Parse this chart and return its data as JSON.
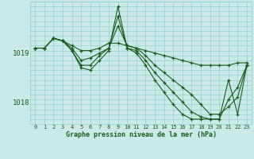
{
  "background_color": "#cce9e9",
  "grid_color": "#99cccc",
  "line_color": "#1a5c1a",
  "title": "Graphe pression niveau de la mer (hPa)",
  "xlim": [
    -0.5,
    23.5
  ],
  "ylim": [
    1017.55,
    1020.05
  ],
  "yticks": [
    1018,
    1019
  ],
  "xtick_labels": [
    "0",
    "1",
    "2",
    "3",
    "4",
    "5",
    "6",
    "7",
    "8",
    "9",
    "10",
    "11",
    "12",
    "13",
    "14",
    "15",
    "16",
    "17",
    "18",
    "19",
    "20",
    "21",
    "22",
    "23"
  ],
  "xtick_positions": [
    0,
    1,
    2,
    3,
    4,
    5,
    6,
    7,
    8,
    9,
    10,
    11,
    12,
    13,
    14,
    15,
    16,
    17,
    18,
    19,
    20,
    21,
    22,
    23
  ],
  "series": [
    {
      "x": [
        0,
        1,
        2,
        3,
        4,
        5,
        6,
        7,
        8,
        9,
        10,
        11,
        12,
        13,
        14,
        15,
        16,
        17,
        18,
        19,
        20,
        21,
        22,
        23
      ],
      "y": [
        1019.1,
        1019.1,
        1019.3,
        1019.25,
        1019.15,
        1019.05,
        1019.05,
        1019.1,
        1019.2,
        1019.2,
        1019.15,
        1019.1,
        1019.05,
        1019.0,
        1018.95,
        1018.9,
        1018.85,
        1018.8,
        1018.75,
        1018.75,
        1018.75,
        1018.75,
        1018.8,
        1018.8
      ]
    },
    {
      "x": [
        0,
        1,
        2,
        3,
        4,
        5,
        6,
        7,
        8,
        9,
        10,
        11,
        12,
        13,
        14,
        15,
        16,
        17,
        18,
        19,
        20,
        21,
        22,
        23
      ],
      "y": [
        1019.1,
        1019.1,
        1019.3,
        1019.25,
        1019.1,
        1018.85,
        1018.9,
        1019.0,
        1019.1,
        1019.55,
        1019.15,
        1019.1,
        1018.95,
        1018.75,
        1018.6,
        1018.45,
        1018.3,
        1018.15,
        1017.95,
        1017.75,
        1017.75,
        1017.9,
        1018.1,
        1018.75
      ]
    },
    {
      "x": [
        0,
        1,
        2,
        3,
        4,
        5,
        6,
        7,
        8,
        9,
        10,
        11,
        12,
        13,
        14,
        15,
        16,
        17,
        18,
        19,
        20,
        21,
        22,
        23
      ],
      "y": [
        1019.1,
        1019.1,
        1019.3,
        1019.25,
        1019.05,
        1018.75,
        1018.75,
        1018.95,
        1019.1,
        1019.75,
        1019.1,
        1019.05,
        1018.85,
        1018.6,
        1018.4,
        1018.2,
        1018.0,
        1017.8,
        1017.7,
        1017.65,
        1017.65,
        1018.05,
        1018.3,
        1018.75
      ]
    },
    {
      "x": [
        2,
        3,
        4,
        5,
        6,
        7,
        8,
        9,
        10,
        11,
        12,
        13,
        14,
        15,
        16,
        17,
        18,
        19,
        20,
        21,
        22,
        23
      ],
      "y": [
        1019.3,
        1019.25,
        1019.05,
        1018.7,
        1018.65,
        1018.85,
        1019.05,
        1019.95,
        1019.1,
        1019.0,
        1018.75,
        1018.45,
        1018.2,
        1017.95,
        1017.75,
        1017.65,
        1017.65,
        1017.65,
        1017.65,
        1018.45,
        1017.75,
        1018.75
      ]
    }
  ]
}
